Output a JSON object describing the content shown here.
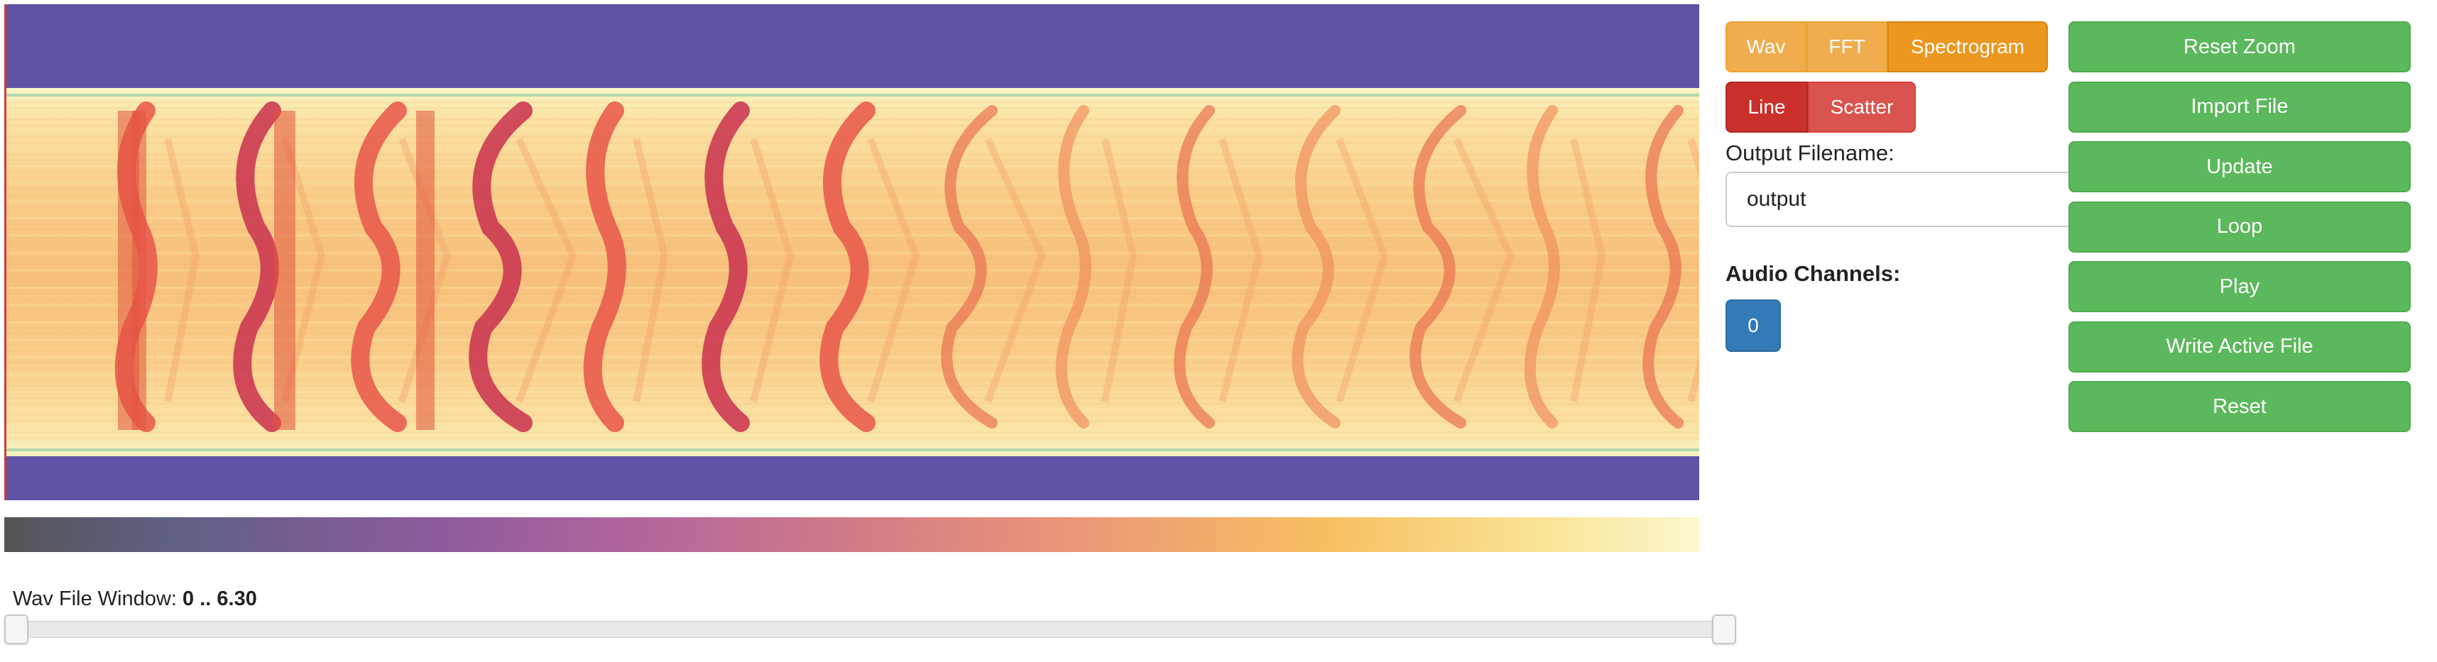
{
  "view_modes": {
    "items": [
      {
        "label": "Wav",
        "active": false
      },
      {
        "label": "FFT",
        "active": false
      },
      {
        "label": "Spectrogram",
        "active": true
      }
    ]
  },
  "plot_styles": {
    "items": [
      {
        "label": "Line",
        "active": true
      },
      {
        "label": "Scatter",
        "active": false
      }
    ]
  },
  "output": {
    "label": "Output Filename:",
    "value": "output"
  },
  "channels": {
    "label": "Audio Channels:",
    "items": [
      "0"
    ]
  },
  "actions": [
    "Reset Zoom",
    "Import File",
    "Update",
    "Loop",
    "Play",
    "Write Active File",
    "Reset"
  ],
  "wav_window": {
    "label": "Wav File Window:",
    "range_text": "0 .. 6.30",
    "min": 0,
    "max": 6.3
  },
  "colors": {
    "background_band": "#5f53a6",
    "orange": "#f0ad4e",
    "red": "#d9534f",
    "blue": "#337ab7",
    "green": "#5cb85c"
  }
}
